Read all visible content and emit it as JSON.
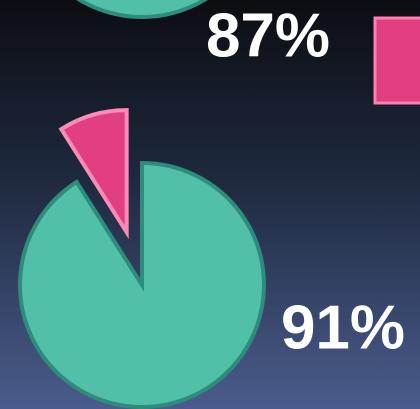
{
  "chart_data": [
    {
      "type": "pie",
      "values": [
        87,
        13
      ],
      "value_labels": [
        "87%",
        null
      ],
      "colors": [
        "#52bfa9",
        "#e23f80"
      ]
    },
    {
      "type": "pie",
      "values": [
        91,
        9
      ],
      "value_labels": [
        "91%",
        null
      ],
      "colors": [
        "#52bfa9",
        "#e23f80"
      ]
    }
  ]
}
